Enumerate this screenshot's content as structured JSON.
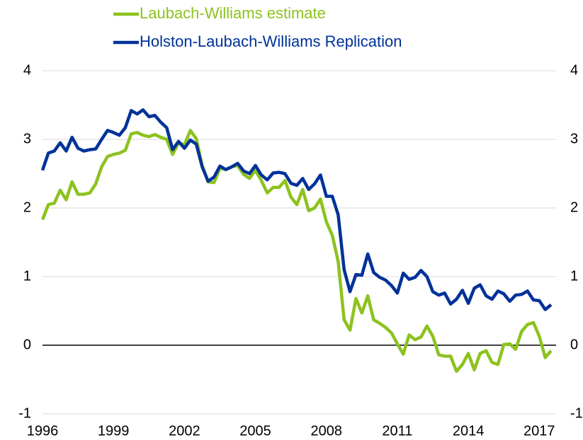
{
  "chart_data": {
    "type": "line",
    "x": [
      1996,
      1996.25,
      1996.5,
      1996.75,
      1997,
      1997.25,
      1997.5,
      1997.75,
      1998,
      1998.25,
      1998.5,
      1998.75,
      1999,
      1999.25,
      1999.5,
      1999.75,
      2000,
      2000.25,
      2000.5,
      2000.75,
      2001,
      2001.25,
      2001.5,
      2001.75,
      2002,
      2002.25,
      2002.5,
      2002.75,
      2003,
      2003.25,
      2003.5,
      2003.75,
      2004,
      2004.25,
      2004.5,
      2004.75,
      2005,
      2005.25,
      2005.5,
      2005.75,
      2006,
      2006.25,
      2006.5,
      2006.75,
      2007,
      2007.25,
      2007.5,
      2007.75,
      2008,
      2008.25,
      2008.5,
      2008.75,
      2009,
      2009.25,
      2009.5,
      2009.75,
      2010,
      2010.25,
      2010.5,
      2010.75,
      2011,
      2011.25,
      2011.5,
      2011.75,
      2012,
      2012.25,
      2012.5,
      2012.75,
      2013,
      2013.25,
      2013.5,
      2013.75,
      2014,
      2014.25,
      2014.5,
      2014.75,
      2015,
      2015.25,
      2015.5,
      2015.75,
      2016,
      2016.25,
      2016.5,
      2016.75,
      2017,
      2017.25,
      2017.5
    ],
    "series": [
      {
        "name": "Laubach-Williams estimate",
        "color": "#8dc21f",
        "values": [
          1.83,
          2.05,
          2.07,
          2.26,
          2.12,
          2.38,
          2.2,
          2.2,
          2.22,
          2.35,
          2.6,
          2.75,
          2.78,
          2.8,
          2.84,
          3.08,
          3.1,
          3.06,
          3.04,
          3.07,
          3.03,
          3.0,
          2.78,
          2.95,
          2.92,
          3.13,
          3.01,
          2.62,
          2.38,
          2.37,
          2.58,
          2.56,
          2.6,
          2.62,
          2.49,
          2.43,
          2.55,
          2.4,
          2.22,
          2.3,
          2.3,
          2.4,
          2.16,
          2.05,
          2.27,
          1.96,
          2.0,
          2.13,
          1.8,
          1.6,
          1.22,
          0.37,
          0.22,
          0.68,
          0.47,
          0.72,
          0.37,
          0.32,
          0.26,
          0.18,
          0.02,
          -0.13,
          0.15,
          0.08,
          0.12,
          0.28,
          0.13,
          -0.14,
          -0.16,
          -0.16,
          -0.38,
          -0.28,
          -0.12,
          -0.36,
          -0.12,
          -0.08,
          -0.25,
          -0.28,
          0.01,
          0.02,
          -0.06,
          0.2,
          0.3,
          0.33,
          0.13,
          -0.18,
          -0.08
        ]
      },
      {
        "name": "Holston-Laubach-Williams Replication",
        "color": "#003299",
        "values": [
          2.55,
          2.8,
          2.83,
          2.95,
          2.83,
          3.03,
          2.87,
          2.83,
          2.85,
          2.86,
          3.0,
          3.13,
          3.1,
          3.06,
          3.17,
          3.42,
          3.37,
          3.43,
          3.33,
          3.35,
          3.25,
          3.17,
          2.85,
          2.97,
          2.87,
          2.99,
          2.93,
          2.6,
          2.39,
          2.45,
          2.61,
          2.56,
          2.6,
          2.65,
          2.54,
          2.5,
          2.62,
          2.48,
          2.41,
          2.51,
          2.52,
          2.5,
          2.36,
          2.33,
          2.43,
          2.27,
          2.35,
          2.48,
          2.17,
          2.17,
          1.9,
          1.1,
          0.78,
          1.03,
          1.02,
          1.33,
          1.06,
          0.99,
          0.95,
          0.87,
          0.76,
          1.05,
          0.96,
          0.99,
          1.09,
          1.0,
          0.78,
          0.73,
          0.76,
          0.6,
          0.67,
          0.8,
          0.61,
          0.83,
          0.88,
          0.72,
          0.67,
          0.79,
          0.75,
          0.64,
          0.73,
          0.74,
          0.79,
          0.66,
          0.65,
          0.52,
          0.59
        ]
      }
    ],
    "xlim": [
      1996,
      2017.5
    ],
    "xticks": [
      1996,
      1999,
      2002,
      2005,
      2008,
      2011,
      2014,
      2017
    ],
    "ylim": [
      -1,
      4
    ],
    "yticks": [
      -1,
      0,
      1,
      2,
      3,
      4
    ],
    "y2lim": [
      -1,
      4
    ],
    "y2ticks": [
      -1,
      0,
      1,
      2,
      3,
      4
    ],
    "grid": true,
    "legend": "top"
  }
}
